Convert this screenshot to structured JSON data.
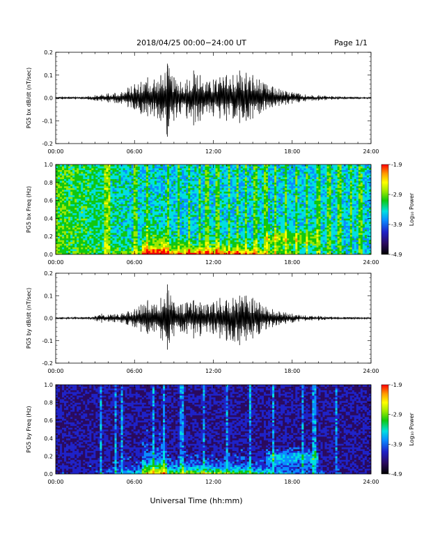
{
  "header": {
    "title": "2018/04/25  00:00−24:00 UT",
    "page_label": "Page 1/1"
  },
  "footer": {
    "xlabel": "Universal Time (hh:mm)"
  },
  "colorbar": {
    "label": "Log₁₀ Power",
    "ticks": [
      "-1.9",
      "-2.9",
      "-3.9",
      "-4.9"
    ],
    "colors": [
      "#000000",
      "#2a0a5e",
      "#1e22c8",
      "#0a8cff",
      "#00e0e0",
      "#10c810",
      "#9be800",
      "#ffff00",
      "#ff9a00",
      "#ff0000"
    ]
  },
  "chart_data": [
    {
      "type": "line",
      "ylabel": "PG5 bx dB/dt (nT/sec)",
      "xlim": [
        0,
        24
      ],
      "ylim": [
        -0.2,
        0.2
      ],
      "x_ticks": [
        "00:00",
        "06:00",
        "12:00",
        "18:00",
        "24:00"
      ],
      "y_ticks": [
        "0.2",
        "0.1",
        "0.0",
        "-0.1",
        "-0.2"
      ],
      "series": [
        {
          "x": [
            0,
            0.5,
            1,
            1.5,
            2,
            2.5,
            3,
            3.5,
            4,
            4.5,
            5,
            5.5,
            6,
            6.5,
            7,
            7.5,
            8,
            8.5,
            9,
            9.5,
            10,
            10.5,
            11,
            11.5,
            12,
            12.5,
            13,
            13.5,
            14,
            14.5,
            15,
            15.5,
            16,
            16.5,
            17,
            17.5,
            18,
            18.5,
            19,
            19.5,
            20,
            20.5,
            21,
            21.5,
            22,
            22.5,
            23,
            23.5,
            24
          ],
          "y_max": [
            0.005,
            0.006,
            0.005,
            0.006,
            0.005,
            0.008,
            0.012,
            0.015,
            0.02,
            0.022,
            0.025,
            0.045,
            0.06,
            0.07,
            0.09,
            0.08,
            0.1,
            0.15,
            0.09,
            0.07,
            0.08,
            0.12,
            0.1,
            0.07,
            0.08,
            0.09,
            0.1,
            0.1,
            0.12,
            0.11,
            0.1,
            0.08,
            0.06,
            0.05,
            0.04,
            0.03,
            0.025,
            0.02,
            0.015,
            0.012,
            0.012,
            0.01,
            0.008,
            0.007,
            0.006,
            0.005,
            0.005,
            0.004,
            0.004
          ],
          "y_min": [
            -0.005,
            -0.006,
            -0.005,
            -0.006,
            -0.005,
            -0.008,
            -0.012,
            -0.015,
            -0.02,
            -0.022,
            -0.025,
            -0.04,
            -0.05,
            -0.07,
            -0.08,
            -0.08,
            -0.1,
            -0.17,
            -0.1,
            -0.07,
            -0.09,
            -0.12,
            -0.1,
            -0.06,
            -0.08,
            -0.09,
            -0.1,
            -0.09,
            -0.11,
            -0.1,
            -0.09,
            -0.07,
            -0.05,
            -0.04,
            -0.035,
            -0.03,
            -0.025,
            -0.02,
            -0.015,
            -0.012,
            -0.012,
            -0.01,
            -0.008,
            -0.007,
            -0.006,
            -0.005,
            -0.005,
            -0.004,
            -0.004
          ]
        }
      ]
    },
    {
      "type": "heatmap",
      "ylabel": "PG5 bx Freq (Hz)",
      "xlim": [
        0,
        24
      ],
      "ylim": [
        0,
        1
      ],
      "x_ticks": [
        "00:00",
        "06:00",
        "12:00",
        "18:00",
        "24:00"
      ],
      "y_ticks": [
        "1.0",
        "0.8",
        "0.6",
        "0.4",
        "0.2",
        "0.0"
      ],
      "color_range": [
        -4.9,
        -1.9
      ],
      "background_level": -3.6,
      "vertical_stripes_hours": [
        3.7,
        4.0,
        6.0,
        6.2,
        7.0,
        8.6,
        9.4,
        10.2,
        11.0,
        11.5,
        12.3,
        13.2,
        13.8,
        14.5,
        15.2,
        16.0,
        16.7,
        17.5,
        18.3,
        19.1,
        20.0,
        20.8,
        21.6,
        22.5,
        23.2
      ]
    },
    {
      "type": "line",
      "ylabel": "PG5 by dB/dt (nT/sec)",
      "xlim": [
        0,
        24
      ],
      "ylim": [
        -0.2,
        0.2
      ],
      "x_ticks": [
        "00:00",
        "06:00",
        "12:00",
        "18:00",
        "24:00"
      ],
      "y_ticks": [
        "0.2",
        "0.1",
        "0.0",
        "-0.1",
        "-0.2"
      ],
      "series": [
        {
          "x": [
            0,
            0.5,
            1,
            1.5,
            2,
            2.5,
            3,
            3.5,
            4,
            4.5,
            5,
            5.5,
            6,
            6.5,
            7,
            7.5,
            8,
            8.5,
            9,
            9.5,
            10,
            10.5,
            11,
            11.5,
            12,
            12.5,
            13,
            13.5,
            14,
            14.5,
            15,
            15.5,
            16,
            16.5,
            17,
            17.5,
            18,
            18.5,
            19,
            19.5,
            20,
            20.5,
            21,
            21.5,
            22,
            22.5,
            23,
            23.5,
            24
          ],
          "y_max": [
            0.004,
            0.005,
            0.004,
            0.005,
            0.005,
            0.006,
            0.01,
            0.02,
            0.015,
            0.018,
            0.02,
            0.03,
            0.04,
            0.06,
            0.08,
            0.06,
            0.09,
            0.15,
            0.07,
            0.06,
            0.07,
            0.08,
            0.07,
            0.06,
            0.07,
            0.09,
            0.08,
            0.09,
            0.1,
            0.1,
            0.09,
            0.07,
            0.05,
            0.04,
            0.03,
            0.025,
            0.02,
            0.015,
            0.012,
            0.01,
            0.01,
            0.008,
            0.007,
            0.006,
            0.005,
            0.005,
            0.004,
            0.004,
            0.004
          ],
          "y_min": [
            -0.004,
            -0.005,
            -0.004,
            -0.005,
            -0.005,
            -0.006,
            -0.01,
            -0.02,
            -0.015,
            -0.018,
            -0.02,
            -0.03,
            -0.04,
            -0.06,
            -0.07,
            -0.06,
            -0.09,
            -0.14,
            -0.08,
            -0.06,
            -0.07,
            -0.09,
            -0.08,
            -0.06,
            -0.07,
            -0.09,
            -0.1,
            -0.1,
            -0.12,
            -0.1,
            -0.09,
            -0.07,
            -0.05,
            -0.04,
            -0.03,
            -0.025,
            -0.02,
            -0.015,
            -0.012,
            -0.01,
            -0.01,
            -0.008,
            -0.007,
            -0.006,
            -0.005,
            -0.005,
            -0.004,
            -0.004,
            -0.004
          ]
        }
      ]
    },
    {
      "type": "heatmap",
      "ylabel": "PG5 by Freq (Hz)",
      "xlim": [
        0,
        24
      ],
      "ylim": [
        0,
        1
      ],
      "x_ticks": [
        "00:00",
        "06:00",
        "12:00",
        "18:00",
        "24:00"
      ],
      "y_ticks": [
        "1.0",
        "0.8",
        "0.6",
        "0.4",
        "0.2",
        "0.0"
      ],
      "color_range": [
        -4.9,
        -1.9
      ],
      "background_level": -4.3,
      "vertical_stripes_hours": [
        3.4,
        4.6,
        5.0,
        7.4,
        8.2,
        9.6,
        11.3,
        13.0,
        14.8,
        16.5,
        18.8,
        19.7,
        21.4
      ]
    }
  ]
}
